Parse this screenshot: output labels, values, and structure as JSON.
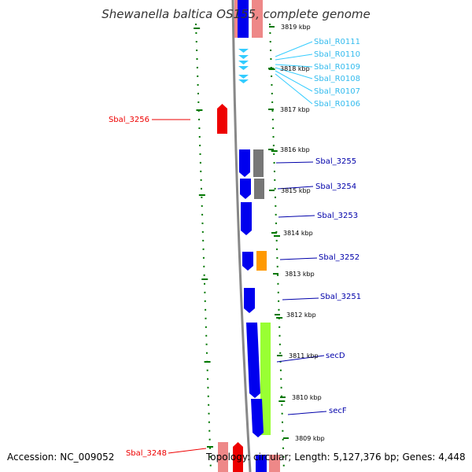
{
  "title": "Shewanella baltica OS155, complete genome",
  "footer": {
    "accession": "Accession: NC_009052",
    "topology": "Topology: circular; Length: 5,127,376 bp; Genes: 4,448"
  },
  "colors": {
    "cds_forward": "#0000ee",
    "cds_reverse": "#ee0000",
    "trna": "#33ccff",
    "gc_skew_dots": "#007700",
    "backbone": "#888888",
    "grey_feature": "#777777",
    "orange_feature": "#ff9900",
    "green_feature": "#99ff33",
    "pink_feature": "#ee8888"
  },
  "kbp_labels": [
    {
      "name": "tick-3819",
      "text": "3819 kbp"
    },
    {
      "name": "tick-3818",
      "text": "3818 kbp"
    },
    {
      "name": "tick-3817",
      "text": "3817 kbp"
    },
    {
      "name": "tick-3816",
      "text": "3816 kbp"
    },
    {
      "name": "tick-3815",
      "text": "3815 kbp"
    },
    {
      "name": "tick-3814",
      "text": "3814 kbp"
    },
    {
      "name": "tick-3813",
      "text": "3813 kbp"
    },
    {
      "name": "tick-3812",
      "text": "3812 kbp"
    },
    {
      "name": "tick-3811",
      "text": "3811 kbp"
    },
    {
      "name": "tick-3810",
      "text": "3810 kbp"
    },
    {
      "name": "tick-3809",
      "text": "3809 kbp"
    }
  ],
  "trna_labels": [
    "Sbal_R0111",
    "Sbal_R0110",
    "Sbal_R0109",
    "Sbal_R0108",
    "Sbal_R0107",
    "Sbal_R0106"
  ],
  "gene_labels": {
    "sbal_3256": "Sbal_3256",
    "sbal_3255": "Sbal_3255",
    "sbal_3254": "Sbal_3254",
    "sbal_3253": "Sbal_3253",
    "sbal_3252": "Sbal_3252",
    "sbal_3251": "Sbal_3251",
    "secD": "secD",
    "secF": "secF",
    "sbal_3248": "Sbal_3248"
  }
}
